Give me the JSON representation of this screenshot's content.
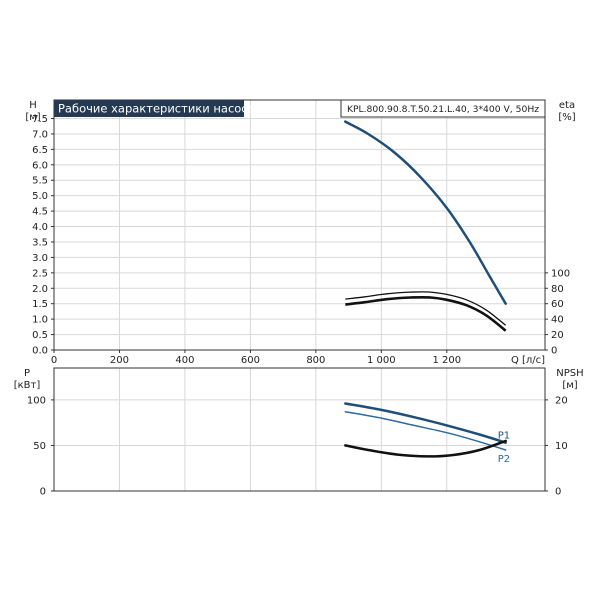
{
  "chart_data": [
    {
      "type": "line",
      "title": "Рабочие характеристики насоса",
      "model": "KPL.800.90.8.T.50.21.L.40, 3*400 V, 50Hz",
      "x_label": "Q [л/с]",
      "y_left_label_top": "H",
      "y_left_label_unit": "[м]",
      "y_right_label_top": "eta",
      "y_right_label_unit": "[%]",
      "x_range": [
        0,
        1500
      ],
      "x_ticks": [
        0,
        200,
        400,
        600,
        800,
        1000,
        1200
      ],
      "x_tick_labels": [
        "0",
        "200",
        "400",
        "600",
        "800",
        "1 000",
        "1 200"
      ],
      "y_left_range": [
        0,
        8.1
      ],
      "y_left_ticks": [
        0.0,
        0.5,
        1.0,
        1.5,
        2.0,
        2.5,
        3.0,
        3.5,
        4.0,
        4.5,
        5.0,
        5.5,
        6.0,
        6.5,
        7.0,
        7.5
      ],
      "y_left_tick_labels": [
        "0.0",
        "0.5",
        "1.0",
        "1.5",
        "2.0",
        "2.5",
        "3.0",
        "3.5",
        "4.0",
        "4.5",
        "5.0",
        "5.5",
        "6.0",
        "6.5",
        "7.0",
        "7.5"
      ],
      "y_right_ticks": [
        0,
        20,
        40,
        60,
        80,
        100
      ],
      "y_right_tick_labels": [
        "0",
        "20",
        "40",
        "60",
        "80",
        "100"
      ],
      "series": [
        {
          "axis": "left",
          "color": "#1f4e79",
          "points": [
            [
              890,
              7.4
            ],
            [
              960,
              7.0
            ],
            [
              1040,
              6.4
            ],
            [
              1120,
              5.6
            ],
            [
              1200,
              4.6
            ],
            [
              1270,
              3.5
            ],
            [
              1330,
              2.4
            ],
            [
              1380,
              1.5
            ]
          ]
        },
        {
          "axis": "right",
          "color": "#111111",
          "style": "double",
          "points": [
            [
              890,
              66
            ],
            [
              950,
              69
            ],
            [
              1020,
              73
            ],
            [
              1090,
              75
            ],
            [
              1150,
              75
            ],
            [
              1200,
              72
            ],
            [
              1260,
              65
            ],
            [
              1320,
              52
            ],
            [
              1380,
              32
            ]
          ]
        }
      ]
    },
    {
      "type": "line",
      "x_range": [
        0,
        1500
      ],
      "x_ticks": [
        0,
        200,
        400,
        600,
        800,
        1000,
        1200
      ],
      "y_left_label_top": "P",
      "y_left_label_unit": "[кВт]",
      "y_right_label_top": "NPSH",
      "y_right_label_unit": "[м]",
      "y_left_range": [
        0,
        135
      ],
      "y_left_ticks": [
        0,
        50,
        100
      ],
      "y_left_tick_labels": [
        "0",
        "50",
        "100"
      ],
      "y_right_range": [
        0,
        27
      ],
      "y_right_ticks": [
        0,
        10,
        20
      ],
      "y_right_tick_labels": [
        "0",
        "10",
        "20"
      ],
      "series": [
        {
          "name": "P1",
          "axis": "left",
          "color": "#1f4e79",
          "width": 2.5,
          "points": [
            [
              890,
              96
            ],
            [
              1000,
              89
            ],
            [
              1100,
              81
            ],
            [
              1200,
              72
            ],
            [
              1300,
              62
            ],
            [
              1380,
              53
            ]
          ]
        },
        {
          "name": "P2",
          "axis": "left",
          "color": "#2d6a9f",
          "width": 1.5,
          "points": [
            [
              890,
              87
            ],
            [
              1000,
              80
            ],
            [
              1100,
              72
            ],
            [
              1200,
              64
            ],
            [
              1300,
              54
            ],
            [
              1380,
              45
            ]
          ]
        },
        {
          "axis": "right",
          "color": "#111111",
          "width": 2.5,
          "points": [
            [
              890,
              10.0
            ],
            [
              960,
              9.0
            ],
            [
              1050,
              8.0
            ],
            [
              1140,
              7.6
            ],
            [
              1220,
              7.9
            ],
            [
              1300,
              9.0
            ],
            [
              1380,
              11.0
            ]
          ]
        }
      ]
    }
  ]
}
